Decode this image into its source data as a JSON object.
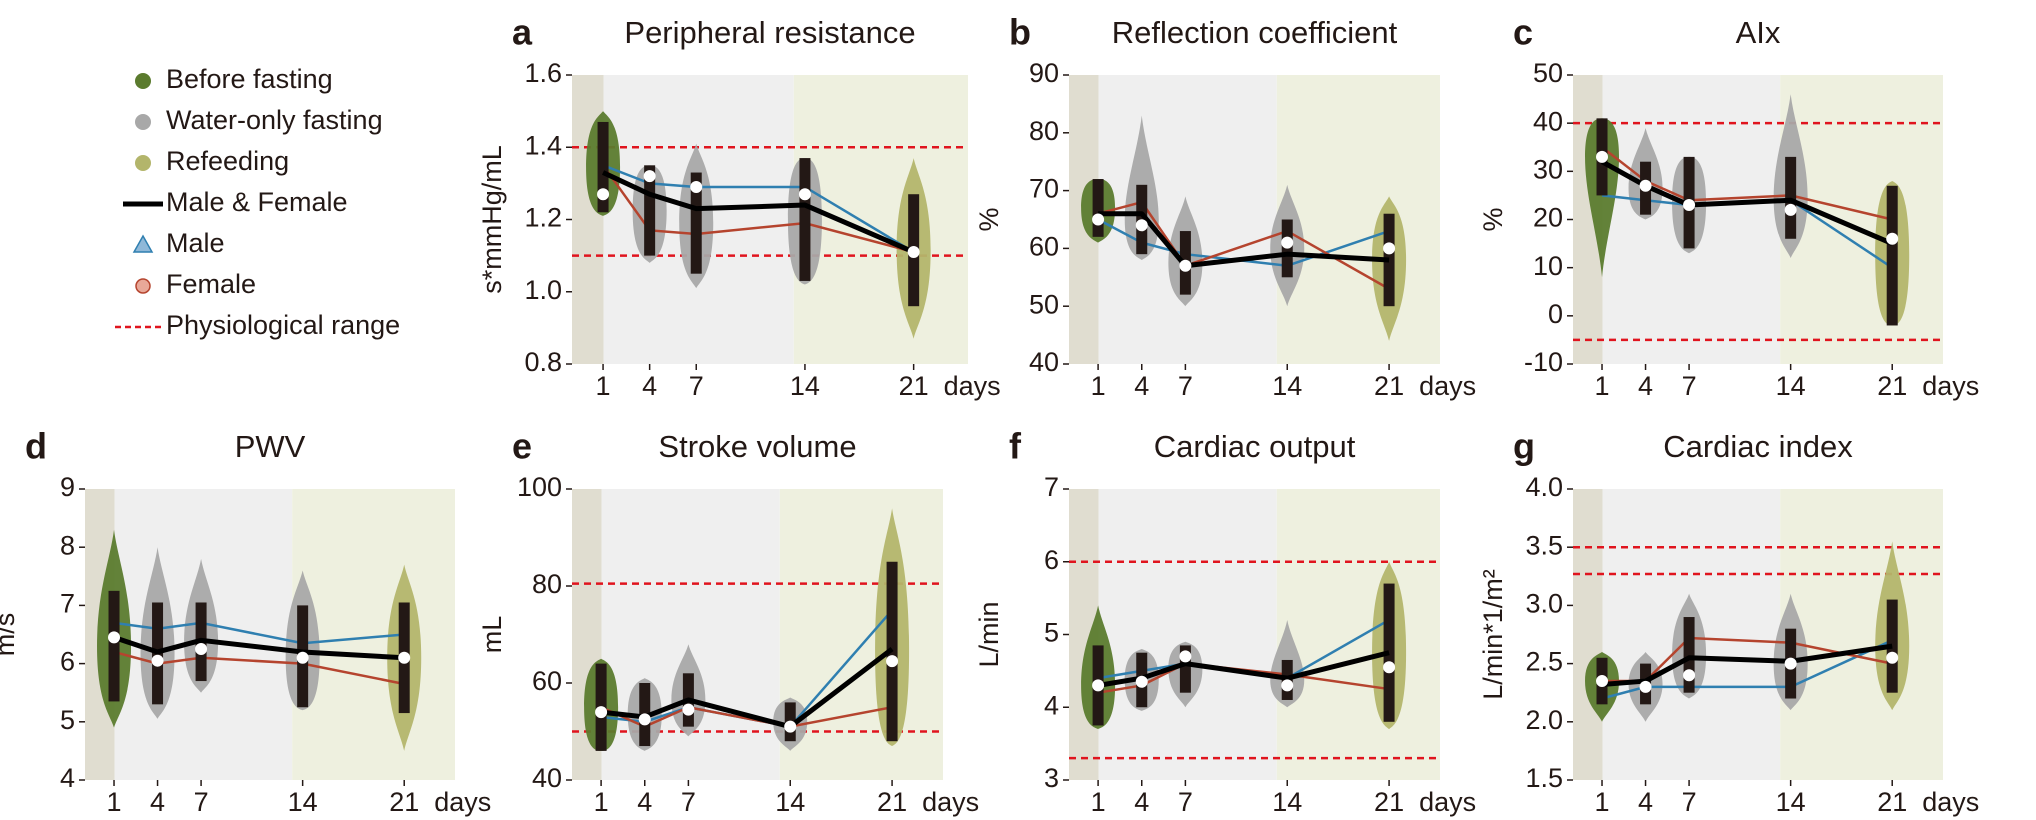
{
  "legend": {
    "phases": [
      {
        "label": "Before fasting",
        "color": "#5b7b2e"
      },
      {
        "label": "Water-only fasting",
        "color": "#a8a8a8"
      },
      {
        "label": "Refeeding",
        "color": "#b3b56b"
      }
    ],
    "ref_line": {
      "label": "Physiological range",
      "color": "#e0141e"
    }
  },
  "chart_data": [
    {
      "type": "violin",
      "letter": "a",
      "title": "Peripheral resistance",
      "ylabel": "s*mmHg/mL",
      "xlabel": "days",
      "x": [
        1,
        4,
        7,
        14,
        21
      ],
      "xticks": [
        1,
        4,
        7,
        14,
        21
      ],
      "xlim": [
        -1,
        24.5
      ],
      "ylim": [
        0.8,
        1.6
      ],
      "yticks": [
        0.8,
        {
          "value": 1.0,
          "label": "1.0"
        },
        1.2,
        1.4,
        1.6
      ],
      "ranges": [
        1.1,
        1.4
      ],
      "violins": {
        "min": [
          1.21,
          1.08,
          1.01,
          1.02,
          0.87
        ],
        "q1": [
          1.22,
          1.1,
          1.05,
          1.03,
          0.96
        ],
        "median": [
          1.27,
          1.32,
          1.29,
          1.27,
          1.11
        ],
        "q3": [
          1.47,
          1.35,
          1.33,
          1.37,
          1.27
        ],
        "max": [
          1.5,
          1.35,
          1.41,
          1.37,
          1.37
        ]
      },
      "series": [
        {
          "name": "Male",
          "color": "#2f7fb0",
          "values": [
            1.35,
            1.3,
            1.29,
            1.29,
            1.11
          ]
        },
        {
          "name": "Female",
          "color": "#b5442e",
          "values": [
            1.35,
            1.17,
            1.16,
            1.19,
            1.11
          ]
        },
        {
          "name": "Male & Female",
          "color": "#000000",
          "values": [
            1.33,
            1.27,
            1.23,
            1.24,
            1.11
          ]
        }
      ]
    },
    {
      "type": "violin",
      "letter": "b",
      "title": "Reflection coefficient",
      "ylabel": "%",
      "xlabel": "days",
      "x": [
        1,
        4,
        7,
        14,
        21
      ],
      "xticks": [
        1,
        4,
        7,
        14,
        21
      ],
      "xlim": [
        -1,
        24.5
      ],
      "ylim": [
        40,
        90
      ],
      "yticks": [
        40,
        50,
        60,
        70,
        80,
        90
      ],
      "ranges": [],
      "violins": {
        "min": [
          61,
          58,
          50,
          50,
          44
        ],
        "q1": [
          62,
          59,
          52,
          55,
          50
        ],
        "median": [
          65,
          64,
          57,
          61,
          60
        ],
        "q3": [
          72,
          71,
          63,
          65,
          66
        ],
        "max": [
          72,
          83,
          69,
          71,
          69
        ]
      },
      "series": [
        {
          "name": "Male",
          "color": "#2f7fb0",
          "values": [
            65,
            61,
            59,
            57,
            63
          ]
        },
        {
          "name": "Female",
          "color": "#b5442e",
          "values": [
            66,
            68,
            57,
            63,
            53
          ]
        },
        {
          "name": "Male & Female",
          "color": "#000000",
          "values": [
            66,
            66,
            57,
            59,
            58
          ]
        }
      ]
    },
    {
      "type": "violin",
      "letter": "c",
      "title": "AIx",
      "ylabel": "%",
      "xlabel": "days",
      "x": [
        1,
        4,
        7,
        14,
        21
      ],
      "xticks": [
        1,
        4,
        7,
        14,
        21
      ],
      "xlim": [
        -1,
        24.5
      ],
      "ylim": [
        -10,
        50
      ],
      "yticks": [
        -10,
        0,
        10,
        20,
        30,
        40,
        50
      ],
      "ranges": [
        -5,
        40
      ],
      "violins": {
        "min": [
          8,
          20,
          13,
          12,
          -2
        ],
        "q1": [
          25,
          21,
          14,
          16,
          -2
        ],
        "median": [
          33,
          27,
          23,
          22,
          16
        ],
        "q3": [
          41,
          32,
          33,
          33,
          27
        ],
        "max": [
          41,
          39,
          33,
          46,
          28
        ]
      },
      "series": [
        {
          "name": "Male",
          "color": "#2f7fb0",
          "values": [
            25,
            24,
            23,
            24,
            10
          ]
        },
        {
          "name": "Female",
          "color": "#b5442e",
          "values": [
            35,
            28,
            24,
            25,
            20
          ]
        },
        {
          "name": "Male & Female",
          "color": "#000000",
          "values": [
            32,
            27,
            23,
            24,
            15
          ]
        }
      ]
    },
    {
      "type": "violin",
      "letter": "d",
      "title": "PWV",
      "ylabel": "m/s",
      "xlabel": "days",
      "x": [
        1,
        4,
        7,
        14,
        21
      ],
      "xticks": [
        1,
        4,
        7,
        14,
        21
      ],
      "xlim": [
        -1,
        24.5
      ],
      "ylim": [
        4,
        9
      ],
      "yticks": [
        4,
        5,
        6,
        7,
        8,
        9
      ],
      "ranges": [],
      "violins": {
        "min": [
          4.9,
          5.05,
          5.5,
          5.2,
          4.5
        ],
        "q1": [
          5.35,
          5.3,
          5.7,
          5.25,
          5.15
        ],
        "median": [
          6.45,
          6.05,
          6.25,
          6.1,
          6.1
        ],
        "q3": [
          7.25,
          7.05,
          7.05,
          7.0,
          7.05
        ],
        "max": [
          8.3,
          8.0,
          7.8,
          7.6,
          7.7
        ]
      },
      "series": [
        {
          "name": "Male",
          "color": "#2f7fb0",
          "values": [
            6.7,
            6.6,
            6.7,
            6.35,
            6.5
          ]
        },
        {
          "name": "Female",
          "color": "#b5442e",
          "values": [
            6.2,
            6.0,
            6.1,
            6.0,
            5.65
          ]
        },
        {
          "name": "Male & Female",
          "color": "#000000",
          "values": [
            6.45,
            6.2,
            6.4,
            6.2,
            6.1
          ]
        }
      ]
    },
    {
      "type": "violin",
      "letter": "e",
      "title": "Stroke volume",
      "ylabel": "mL",
      "xlabel": "days",
      "x": [
        1,
        4,
        7,
        14,
        21
      ],
      "xticks": [
        1,
        4,
        7,
        14,
        21
      ],
      "xlim": [
        -1,
        24.5
      ],
      "ylim": [
        40,
        100
      ],
      "yticks": [
        40,
        60,
        80,
        100
      ],
      "ranges": [
        50,
        80.5
      ],
      "violins": {
        "min": [
          46,
          46,
          49,
          46,
          47
        ],
        "q1": [
          46,
          47,
          51,
          48,
          48
        ],
        "median": [
          54,
          52.5,
          54.5,
          51,
          64.5
        ],
        "q3": [
          64,
          60,
          62,
          56,
          85
        ],
        "max": [
          65,
          61,
          68,
          57,
          96
        ]
      },
      "series": [
        {
          "name": "Male",
          "color": "#2f7fb0",
          "values": [
            53,
            52,
            55,
            51,
            75
          ]
        },
        {
          "name": "Female",
          "color": "#b5442e",
          "values": [
            55,
            51,
            55,
            51,
            55
          ]
        },
        {
          "name": "Male & Female",
          "color": "#000000",
          "values": [
            54,
            53,
            56.5,
            51,
            67
          ]
        }
      ]
    },
    {
      "type": "violin",
      "letter": "f",
      "title": "Cardiac output",
      "ylabel": "L/min",
      "xlabel": "days",
      "x": [
        1,
        4,
        7,
        14,
        21
      ],
      "xticks": [
        1,
        4,
        7,
        14,
        21
      ],
      "xlim": [
        -1,
        24.5
      ],
      "ylim": [
        3,
        7
      ],
      "yticks": [
        3,
        4,
        5,
        6,
        7
      ],
      "ranges": [
        3.3,
        6
      ],
      "violins": {
        "min": [
          3.7,
          3.95,
          4.0,
          4.0,
          3.7
        ],
        "q1": [
          3.75,
          4.0,
          4.2,
          4.1,
          3.8
        ],
        "median": [
          4.3,
          4.35,
          4.7,
          4.3,
          4.55
        ],
        "q3": [
          4.85,
          4.75,
          4.85,
          4.65,
          5.7
        ],
        "max": [
          5.4,
          4.8,
          4.9,
          5.2,
          6.0
        ]
      },
      "series": [
        {
          "name": "Male",
          "color": "#2f7fb0",
          "values": [
            4.4,
            4.5,
            4.6,
            4.4,
            5.2
          ]
        },
        {
          "name": "Female",
          "color": "#b5442e",
          "values": [
            4.2,
            4.3,
            4.6,
            4.45,
            4.25
          ]
        },
        {
          "name": "Male & Female",
          "color": "#000000",
          "values": [
            4.3,
            4.4,
            4.6,
            4.4,
            4.75
          ]
        }
      ]
    },
    {
      "type": "violin",
      "letter": "g",
      "title": "Cardiac index",
      "ylabel": "L/min*1/m²",
      "xlabel": "days",
      "x": [
        1,
        4,
        7,
        14,
        21
      ],
      "xticks": [
        1,
        4,
        7,
        14,
        21
      ],
      "xlim": [
        -1,
        24.5
      ],
      "ylim": [
        1.5,
        4.0
      ],
      "yticks": [
        1.5,
        {
          "value": 2.0,
          "label": "2.0"
        },
        2.5,
        {
          "value": 3.0,
          "label": "3.0"
        },
        3.5,
        {
          "value": 4.0,
          "label": "4.0"
        }
      ],
      "ranges": [
        3.27,
        3.5
      ],
      "violins": {
        "min": [
          2.0,
          2.0,
          2.2,
          2.1,
          2.1
        ],
        "q1": [
          2.15,
          2.15,
          2.25,
          2.2,
          2.25
        ],
        "median": [
          2.35,
          2.3,
          2.4,
          2.5,
          2.55
        ],
        "q3": [
          2.55,
          2.5,
          2.9,
          2.8,
          3.05
        ],
        "max": [
          2.6,
          2.6,
          3.1,
          3.1,
          3.55
        ]
      },
      "series": [
        {
          "name": "Male",
          "color": "#2f7fb0",
          "values": [
            2.2,
            2.3,
            2.3,
            2.3,
            2.7
          ]
        },
        {
          "name": "Female",
          "color": "#b5442e",
          "values": [
            2.35,
            2.35,
            2.72,
            2.68,
            2.5
          ]
        },
        {
          "name": "Male & Female",
          "color": "#000000",
          "values": [
            2.32,
            2.35,
            2.55,
            2.52,
            2.65
          ]
        }
      ]
    }
  ]
}
